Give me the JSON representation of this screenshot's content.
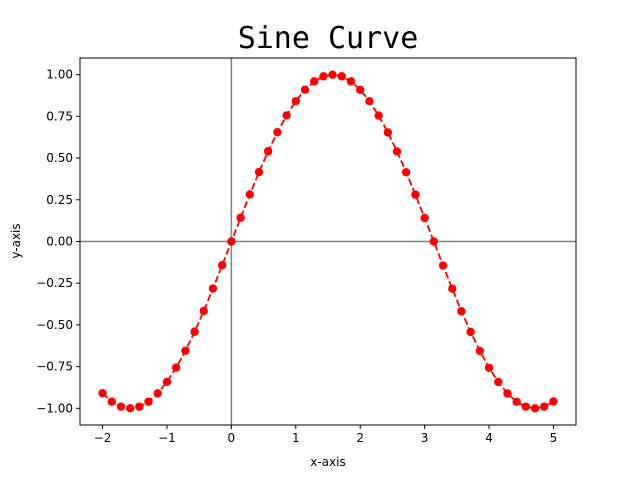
{
  "chart_data": {
    "type": "line",
    "title": "Sine Curve",
    "xlabel": "x-axis",
    "ylabel": "y-axis",
    "xlim": [
      -2.35,
      5.35
    ],
    "ylim": [
      -1.1,
      1.1
    ],
    "xticks": [
      -2,
      -1,
      0,
      1,
      2,
      3,
      4,
      5
    ],
    "xtick_labels": [
      "−2",
      "−1",
      "0",
      "1",
      "2",
      "3",
      "4",
      "5"
    ],
    "yticks": [
      -1.0,
      -0.75,
      -0.5,
      -0.25,
      0.0,
      0.25,
      0.5,
      0.75,
      1.0
    ],
    "ytick_labels": [
      "−1.00",
      "−0.75",
      "−0.50",
      "−0.25",
      "0.00",
      "0.25",
      "0.50",
      "0.75",
      "1.00"
    ],
    "grid": false,
    "reference_lines": {
      "x": 0,
      "y": 0,
      "color": "#808080"
    },
    "series": [
      {
        "color": "#ff0000",
        "line_style": "dashed",
        "marker": "circle",
        "x": [
          -2.0,
          -1.857,
          -1.714,
          -1.571,
          -1.429,
          -1.286,
          -1.143,
          -1.0,
          -0.857,
          -0.714,
          -0.571,
          -0.429,
          -0.286,
          -0.143,
          0.0,
          0.143,
          0.286,
          0.429,
          0.571,
          0.714,
          0.857,
          1.0,
          1.143,
          1.286,
          1.429,
          1.571,
          1.714,
          1.857,
          2.0,
          2.143,
          2.286,
          2.429,
          2.571,
          2.714,
          2.857,
          3.0,
          3.143,
          3.286,
          3.429,
          3.571,
          3.714,
          3.857,
          4.0,
          4.143,
          4.286,
          4.429,
          4.571,
          4.714,
          4.857,
          5.0
        ],
        "y": [
          -0.909,
          -0.96,
          -0.99,
          -1.0,
          -0.99,
          -0.96,
          -0.91,
          -0.841,
          -0.756,
          -0.655,
          -0.541,
          -0.416,
          -0.282,
          -0.142,
          0.0,
          0.142,
          0.282,
          0.416,
          0.541,
          0.655,
          0.756,
          0.841,
          0.91,
          0.96,
          0.99,
          1.0,
          0.99,
          0.96,
          0.909,
          0.841,
          0.755,
          0.654,
          0.54,
          0.415,
          0.281,
          0.141,
          0.0,
          -0.144,
          -0.283,
          -0.418,
          -0.542,
          -0.656,
          -0.757,
          -0.842,
          -0.911,
          -0.961,
          -0.99,
          -1.0,
          -0.99,
          -0.959
        ]
      }
    ]
  }
}
